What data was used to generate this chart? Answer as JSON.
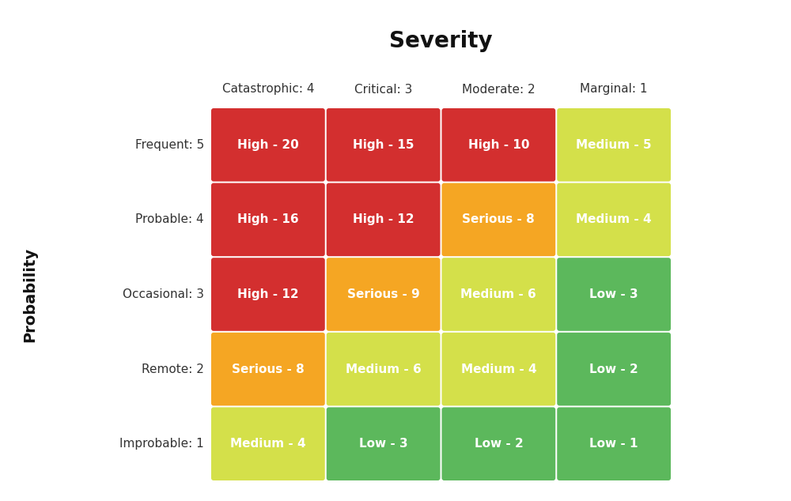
{
  "title": "Severity",
  "ylabel": "Probability",
  "col_labels": [
    "Catastrophic: 4",
    "Critical: 3",
    "Moderate: 2",
    "Marginal: 1"
  ],
  "row_labels": [
    "Frequent: 5",
    "Probable: 4",
    "Occasional: 3",
    "Remote: 2",
    "Improbable: 1"
  ],
  "cells": [
    [
      {
        "text": "High - 20",
        "color": "#d32f2f"
      },
      {
        "text": "High - 15",
        "color": "#d32f2f"
      },
      {
        "text": "High - 10",
        "color": "#d32f2f"
      },
      {
        "text": "Medium - 5",
        "color": "#d4e04a"
      }
    ],
    [
      {
        "text": "High - 16",
        "color": "#d32f2f"
      },
      {
        "text": "High - 12",
        "color": "#d32f2f"
      },
      {
        "text": "Serious - 8",
        "color": "#f5a623"
      },
      {
        "text": "Medium - 4",
        "color": "#d4e04a"
      }
    ],
    [
      {
        "text": "High - 12",
        "color": "#d32f2f"
      },
      {
        "text": "Serious - 9",
        "color": "#f5a623"
      },
      {
        "text": "Medium - 6",
        "color": "#d4e04a"
      },
      {
        "text": "Low - 3",
        "color": "#5cb85c"
      }
    ],
    [
      {
        "text": "Serious - 8",
        "color": "#f5a623"
      },
      {
        "text": "Medium - 6",
        "color": "#d4e04a"
      },
      {
        "text": "Medium - 4",
        "color": "#d4e04a"
      },
      {
        "text": "Low - 2",
        "color": "#5cb85c"
      }
    ],
    [
      {
        "text": "Medium - 4",
        "color": "#d4e04a"
      },
      {
        "text": "Low - 3",
        "color": "#5cb85c"
      },
      {
        "text": "Low - 2",
        "color": "#5cb85c"
      },
      {
        "text": "Low - 1",
        "color": "#5cb85c"
      }
    ]
  ],
  "background_color": "#ffffff",
  "text_color_white": "#ffffff",
  "title_fontsize": 20,
  "col_label_fontsize": 11,
  "row_label_fontsize": 11,
  "ylabel_fontsize": 14,
  "cell_fontsize": 11
}
